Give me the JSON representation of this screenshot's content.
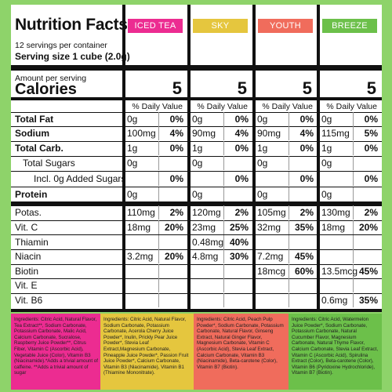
{
  "facts": {
    "title": "Nutrition Facts",
    "servings": "12 servings per container",
    "serving_size": "Serving size  1 cube (2.0g)",
    "amount_per_serving": "Amount per serving",
    "calories_label": "Calories",
    "dv_header": "% Daily Value"
  },
  "flavors": [
    {
      "name": "ICED TEA",
      "color": "#ec2c91",
      "calories": "5"
    },
    {
      "name": "SKY",
      "color": "#e5c63e",
      "calories": "5"
    },
    {
      "name": "YOUTH",
      "color": "#f06c5c",
      "calories": "5"
    },
    {
      "name": "BREEZE",
      "color": "#6cc04a",
      "calories": "5"
    }
  ],
  "rows": [
    {
      "label": "Total Fat",
      "bold": true,
      "values": [
        [
          "0g",
          "0%"
        ],
        [
          "0g",
          "0%"
        ],
        [
          "0g",
          "0%"
        ],
        [
          "0g",
          "0%"
        ]
      ]
    },
    {
      "label": "Sodium",
      "bold": true,
      "values": [
        [
          "100mg",
          "4%"
        ],
        [
          "90mg",
          "4%"
        ],
        [
          "90mg",
          "4%"
        ],
        [
          "115mg",
          "5%"
        ]
      ]
    },
    {
      "label": "Total Carb.",
      "bold": true,
      "values": [
        [
          "1g",
          "0%"
        ],
        [
          "1g",
          "0%"
        ],
        [
          "1g",
          "0%"
        ],
        [
          "1g",
          "0%"
        ]
      ]
    },
    {
      "label": "Total Sugars",
      "bold": false,
      "values": [
        [
          "0g",
          ""
        ],
        [
          "0g",
          ""
        ],
        [
          "0g",
          ""
        ],
        [
          "0g",
          ""
        ]
      ]
    },
    {
      "label": "Incl. 0g Added Sugars",
      "bold": false,
      "values": [
        [
          "",
          "0%"
        ],
        [
          "",
          "0%"
        ],
        [
          "",
          "0%"
        ],
        [
          "",
          "0%"
        ]
      ]
    },
    {
      "label": "Protein",
      "bold": true,
      "values": [
        [
          "0g",
          ""
        ],
        [
          "0g",
          ""
        ],
        [
          "0g",
          ""
        ],
        [
          "0g",
          ""
        ]
      ]
    },
    {
      "label": "Potas.",
      "bold": false,
      "values": [
        [
          "110mg",
          "2%"
        ],
        [
          "120mg",
          "2%"
        ],
        [
          "105mg",
          "2%"
        ],
        [
          "130mg",
          "2%"
        ]
      ]
    },
    {
      "label": "Vit. C",
      "bold": false,
      "values": [
        [
          "18mg",
          "20%"
        ],
        [
          "23mg",
          "25%"
        ],
        [
          "32mg",
          "35%"
        ],
        [
          "18mg",
          "20%"
        ]
      ]
    },
    {
      "label": "Thiamin",
      "bold": false,
      "values": [
        [
          "",
          ""
        ],
        [
          "0.48mg",
          "40%"
        ],
        [
          "",
          ""
        ],
        [
          "",
          ""
        ]
      ]
    },
    {
      "label": "Niacin",
      "bold": false,
      "values": [
        [
          "3.2mg",
          "20%"
        ],
        [
          "4.8mg",
          "30%"
        ],
        [
          "7.2mg",
          "45%"
        ],
        [
          "",
          ""
        ]
      ]
    },
    {
      "label": "Biotin",
      "bold": false,
      "values": [
        [
          "",
          ""
        ],
        [
          "",
          ""
        ],
        [
          "18mcg",
          "60%"
        ],
        [
          "13.5mcg",
          "45%"
        ]
      ]
    },
    {
      "label": "Vit. E",
      "bold": false,
      "values": [
        [
          "",
          ""
        ],
        [
          "",
          ""
        ],
        [
          "",
          ""
        ],
        [
          "",
          ""
        ]
      ]
    },
    {
      "label": "Vit. B6",
      "bold": false,
      "values": [
        [
          "",
          ""
        ],
        [
          "",
          ""
        ],
        [
          "",
          ""
        ],
        [
          "0.6mg",
          "35%"
        ]
      ]
    }
  ],
  "ingredients": [
    {
      "color": "#ec2c91",
      "text": "Ingredients: Citric Acid, Natural Flavor, Tea Extract**, Sodium Carbonate, Potassium Carbonate, Malic Acid, Calcium Carbonate, Sucralose, Raspberry Juice Powder**, Citrus Fiber, Vitamin C (Ascorbic Acid), Vegetable Juice (Color), Vitamin B3 (Niacinamide).*Adds a trivial amount of caffeine. **Adds a trivial amount of sugar"
    },
    {
      "color": "#e5c63e",
      "text": "Ingredients: Citric Acid, Natural Flavor, Sodium Carbonate, Potassium Carbonate, Acerola Cherry Juice Powder*, Inulin, Prickly Pear Juice Powder*, Stevia Leaf Extract,Magnesium Carbonate, Pineapple Juice Powder*, Passion Fruit Juice Powder*, Calcium Carbonate, Vitamin B3 (Niacinamide), Vitamin B1 (Thiamine Mononitrate)."
    },
    {
      "color": "#f06c5c",
      "text": "Ingredients: Citric Acid, Peach Pulp Powder*, Sodium Carbonate, Potassium Carbonate, Natural Flavor, Ginseng Extract, Natural Ginger Flavor, Magnesium Carbonate, Vitamin C (Ascorbic Acid), Stevia Leaf Extract, Calcium Carbonate, Vitamin B3 (Niacinamide), Beta-carotene (Color), Vitamin B7 (Biotin)."
    },
    {
      "color": "#6cc04a",
      "text": "Ingredients: Citric Acid, Watermelon Juice Powder*, Sodium Carbonate, Potassium Carbonate, Natural Cucumber Flavor, Magnesium Carbonate, Natural Thyme Flavor, Calcium Carbonate, Stevia Leaf Extract, Vitamin C (Ascorbic Acid), Spirulina Extract (Color), Beta-carotene (Color), Vitamin B6 (Pyridoxine Hydrochloride), Vitamin B7 (Biotin)."
    }
  ]
}
